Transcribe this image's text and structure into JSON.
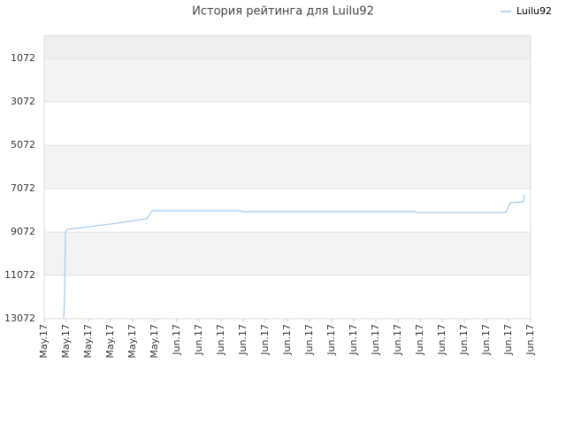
{
  "chart_data": {
    "type": "line",
    "title": "История рейтинга для Luilu92",
    "legend": "top-right",
    "grid": true,
    "series": [
      {
        "name": "Luilu92",
        "color": "#a3cbee",
        "x": [
          0.88,
          0.92,
          0.96,
          1.04,
          3.0,
          4.64,
          4.88,
          8.88,
          8.96,
          16.8,
          16.88,
          20.88,
          21.0,
          21.08,
          21.6,
          21.68,
          21.72
        ],
        "values": [
          13072,
          12256,
          9072,
          8950,
          8704,
          8459,
          8092,
          8092,
          8133,
          8133,
          8174,
          8174,
          7888,
          7725,
          7684,
          7643,
          7357
        ]
      }
    ],
    "xlim": [
      0,
      22
    ],
    "xticks": [
      {
        "value": 0,
        "label": "May.17"
      },
      {
        "value": 1,
        "label": "May.17"
      },
      {
        "value": 2,
        "label": "May.17"
      },
      {
        "value": 3,
        "label": "May.17"
      },
      {
        "value": 4,
        "label": "May.17"
      },
      {
        "value": 5,
        "label": "May.17"
      },
      {
        "value": 6,
        "label": "Jun.17"
      },
      {
        "value": 7,
        "label": "Jun.17"
      },
      {
        "value": 8,
        "label": "Jun.17"
      },
      {
        "value": 9,
        "label": "Jun.17"
      },
      {
        "value": 10,
        "label": "Jun.17"
      },
      {
        "value": 11,
        "label": "Jun.17"
      },
      {
        "value": 12,
        "label": "Jun.17"
      },
      {
        "value": 13,
        "label": "Jun.17"
      },
      {
        "value": 14,
        "label": "Jun.17"
      },
      {
        "value": 15,
        "label": "Jun.17"
      },
      {
        "value": 16,
        "label": "Jun.17"
      },
      {
        "value": 17,
        "label": "Jun.17"
      },
      {
        "value": 18,
        "label": "Jun.17"
      },
      {
        "value": 19,
        "label": "Jun.17"
      },
      {
        "value": 20,
        "label": "Jun.17"
      },
      {
        "value": 21,
        "label": "Jun.17"
      },
      {
        "value": 22,
        "label": "Jun.17"
      }
    ],
    "ylim": [
      13072,
      0
    ],
    "yticks": [
      1072,
      3072,
      5072,
      7072,
      9072,
      11072,
      13072
    ]
  }
}
